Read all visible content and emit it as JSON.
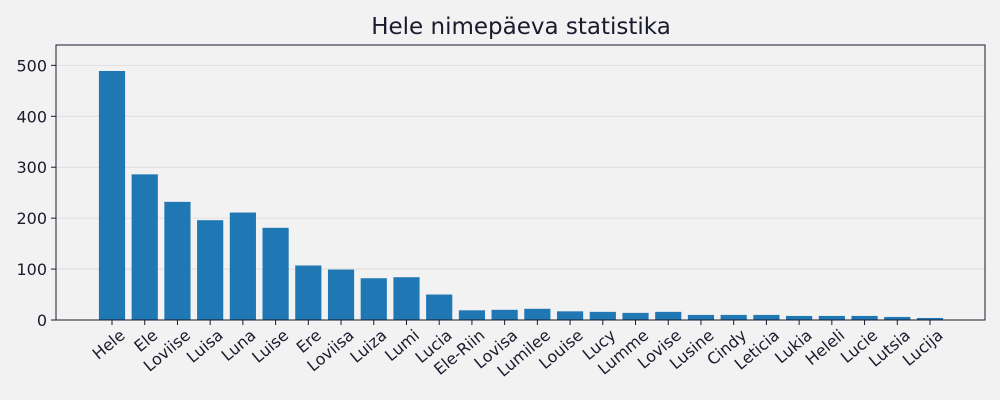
{
  "chart_data": {
    "type": "bar",
    "title": "Hele nimepäeva statistika",
    "xlabel": "",
    "ylabel": "",
    "categories": [
      "Hele",
      "Ele",
      "Loviise",
      "Luisa",
      "Luna",
      "Luise",
      "Ere",
      "Loviisa",
      "Luiza",
      "Lumi",
      "Lucia",
      "Ele-Riin",
      "Lovisa",
      "Lumilee",
      "Louise",
      "Lucy",
      "Lumme",
      "Lovise",
      "Lusine",
      "Cindy",
      "Leticia",
      "Lukia",
      "Heleli",
      "Lucie",
      "Lutsia",
      "Lucija"
    ],
    "values": [
      489,
      286,
      232,
      196,
      211,
      181,
      107,
      99,
      82,
      84,
      50,
      19,
      20,
      22,
      17,
      16,
      14,
      16,
      10,
      10,
      10,
      8,
      8,
      8,
      6,
      4
    ],
    "ylim": [
      0,
      540
    ],
    "yticks": [
      0,
      100,
      200,
      300,
      400,
      500
    ],
    "grid": "horizontal",
    "bar_color": "#1f77b4",
    "background": "#f2f2f2"
  }
}
